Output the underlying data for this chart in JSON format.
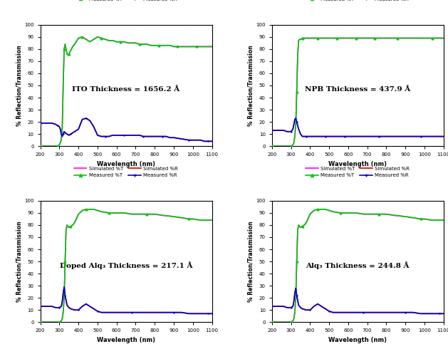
{
  "panels": [
    {
      "title": "ITO Thickness = 1656.2 Å",
      "transmission": {
        "wavelengths": [
          200,
          220,
          240,
          260,
          280,
          290,
          300,
          310,
          315,
          320,
          325,
          330,
          335,
          340,
          345,
          350,
          360,
          370,
          380,
          400,
          420,
          440,
          460,
          480,
          500,
          520,
          540,
          560,
          580,
          600,
          620,
          640,
          660,
          680,
          700,
          720,
          740,
          760,
          780,
          800,
          820,
          840,
          860,
          880,
          900,
          920,
          940,
          960,
          980,
          1000,
          1020,
          1040,
          1060,
          1080,
          1100
        ],
        "sim": [
          0,
          0,
          0,
          0,
          0,
          0,
          1,
          5,
          15,
          50,
          80,
          84,
          80,
          76,
          75,
          76,
          79,
          82,
          84,
          89,
          90,
          88,
          86,
          88,
          90,
          89,
          88,
          87,
          87,
          86,
          86,
          86,
          85,
          85,
          85,
          84,
          84,
          84,
          83,
          83,
          83,
          83,
          83,
          83,
          82,
          82,
          82,
          82,
          82,
          82,
          82,
          82,
          82,
          82,
          82
        ],
        "meas": [
          0,
          0,
          0,
          0,
          0,
          0,
          1,
          5,
          15,
          50,
          80,
          84,
          80,
          76,
          75,
          76,
          79,
          82,
          84,
          89,
          90,
          88,
          86,
          88,
          90,
          89,
          88,
          87,
          87,
          86,
          86,
          86,
          85,
          85,
          85,
          84,
          84,
          84,
          83,
          83,
          83,
          83,
          83,
          83,
          82,
          82,
          82,
          82,
          82,
          82,
          82,
          82,
          82,
          82,
          82
        ]
      },
      "reflection": {
        "wavelengths": [
          200,
          220,
          240,
          260,
          280,
          290,
          300,
          305,
          310,
          315,
          320,
          325,
          330,
          340,
          350,
          360,
          370,
          380,
          400,
          420,
          440,
          460,
          480,
          500,
          520,
          540,
          560,
          580,
          600,
          620,
          640,
          660,
          680,
          700,
          720,
          740,
          760,
          780,
          800,
          820,
          840,
          860,
          880,
          900,
          940,
          980,
          1000,
          1020,
          1040,
          1060,
          1080,
          1100
        ],
        "sim": [
          19,
          19,
          19,
          19,
          18,
          17,
          16,
          14,
          10,
          8,
          10,
          12,
          11,
          10,
          9,
          10,
          11,
          12,
          14,
          22,
          23,
          21,
          16,
          9,
          8,
          8,
          8,
          9,
          9,
          9,
          9,
          9,
          9,
          9,
          9,
          8,
          8,
          8,
          8,
          8,
          8,
          8,
          7,
          7,
          6,
          5,
          5,
          5,
          5,
          4,
          4,
          4
        ],
        "meas": [
          19,
          19,
          19,
          19,
          18,
          17,
          16,
          14,
          10,
          8,
          10,
          12,
          11,
          10,
          9,
          10,
          11,
          12,
          14,
          22,
          23,
          21,
          16,
          9,
          8,
          8,
          8,
          9,
          9,
          9,
          9,
          9,
          9,
          9,
          9,
          8,
          8,
          8,
          8,
          8,
          8,
          8,
          7,
          7,
          6,
          5,
          5,
          5,
          5,
          4,
          4,
          4
        ]
      }
    },
    {
      "title": "NPB Thickness = 437.9 Å",
      "transmission": {
        "wavelengths": [
          200,
          220,
          240,
          260,
          280,
          300,
          310,
          315,
          320,
          325,
          330,
          335,
          340,
          345,
          350,
          360,
          370,
          380,
          400,
          420,
          440,
          460,
          480,
          500,
          520,
          540,
          560,
          580,
          600,
          620,
          640,
          660,
          680,
          700,
          720,
          740,
          760,
          780,
          800,
          820,
          860,
          900,
          940,
          980,
          1000,
          1040,
          1080,
          1100
        ],
        "sim": [
          0,
          0,
          0,
          0,
          0,
          0,
          1,
          3,
          8,
          18,
          45,
          75,
          87,
          88,
          88,
          89,
          89,
          89,
          89,
          89,
          89,
          89,
          89,
          89,
          89,
          89,
          89,
          89,
          89,
          89,
          89,
          89,
          89,
          89,
          89,
          89,
          89,
          89,
          89,
          89,
          89,
          89,
          89,
          89,
          89,
          89,
          89,
          89
        ],
        "meas": [
          0,
          0,
          0,
          0,
          0,
          0,
          1,
          3,
          8,
          18,
          45,
          75,
          87,
          88,
          88,
          89,
          89,
          89,
          89,
          89,
          89,
          89,
          89,
          89,
          89,
          89,
          89,
          89,
          89,
          89,
          89,
          89,
          89,
          89,
          89,
          89,
          89,
          89,
          89,
          89,
          89,
          89,
          89,
          89,
          89,
          89,
          89,
          89
        ]
      },
      "reflection": {
        "wavelengths": [
          200,
          220,
          240,
          260,
          280,
          300,
          310,
          315,
          320,
          325,
          330,
          340,
          350,
          360,
          370,
          380,
          400,
          420,
          440,
          460,
          480,
          500,
          520,
          540,
          560,
          580,
          600,
          640,
          680,
          720,
          760,
          800,
          840,
          900,
          940,
          980,
          1000,
          1040,
          1080,
          1100
        ],
        "sim": [
          13,
          13,
          13,
          13,
          12,
          12,
          14,
          18,
          22,
          23,
          20,
          14,
          10,
          8,
          8,
          8,
          8,
          8,
          8,
          8,
          8,
          8,
          8,
          8,
          8,
          8,
          8,
          8,
          8,
          8,
          8,
          8,
          8,
          8,
          8,
          8,
          8,
          8,
          8,
          8
        ],
        "meas": [
          13,
          13,
          13,
          13,
          12,
          12,
          14,
          18,
          22,
          23,
          20,
          14,
          10,
          8,
          8,
          8,
          8,
          8,
          8,
          8,
          8,
          8,
          8,
          8,
          8,
          8,
          8,
          8,
          8,
          8,
          8,
          8,
          8,
          8,
          8,
          8,
          8,
          8,
          8,
          8
        ]
      }
    },
    {
      "title": "Doped Alq₃ Thickness = 217.1 Å",
      "transmission": {
        "wavelengths": [
          200,
          220,
          240,
          260,
          280,
          300,
          310,
          315,
          320,
          325,
          330,
          335,
          340,
          345,
          350,
          360,
          370,
          380,
          400,
          420,
          440,
          460,
          480,
          500,
          520,
          560,
          600,
          640,
          680,
          720,
          760,
          800,
          840,
          900,
          940,
          980,
          1000,
          1040,
          1080,
          1100
        ],
        "sim": [
          0,
          0,
          0,
          0,
          0,
          0,
          1,
          3,
          8,
          20,
          50,
          76,
          80,
          79,
          78,
          79,
          80,
          82,
          89,
          92,
          93,
          93,
          93,
          92,
          91,
          90,
          90,
          90,
          89,
          89,
          89,
          89,
          88,
          87,
          86,
          85,
          85,
          84,
          84,
          84
        ],
        "meas": [
          0,
          0,
          0,
          0,
          0,
          0,
          1,
          3,
          8,
          20,
          50,
          76,
          80,
          79,
          78,
          79,
          80,
          82,
          89,
          92,
          93,
          93,
          93,
          92,
          91,
          90,
          90,
          90,
          89,
          89,
          89,
          89,
          88,
          87,
          86,
          85,
          85,
          84,
          84,
          84
        ]
      },
      "reflection": {
        "wavelengths": [
          200,
          220,
          240,
          260,
          280,
          300,
          310,
          315,
          320,
          325,
          330,
          340,
          350,
          360,
          380,
          400,
          420,
          440,
          460,
          480,
          500,
          520,
          560,
          600,
          640,
          680,
          720,
          760,
          800,
          840,
          900,
          940,
          980,
          1000,
          1040,
          1080,
          1100
        ],
        "sim": [
          13,
          13,
          13,
          13,
          12,
          12,
          13,
          17,
          24,
          29,
          22,
          14,
          12,
          11,
          10,
          10,
          13,
          15,
          13,
          11,
          9,
          8,
          8,
          8,
          8,
          8,
          8,
          8,
          8,
          8,
          8,
          8,
          7,
          7,
          7,
          7,
          7
        ],
        "meas": [
          13,
          13,
          13,
          13,
          12,
          12,
          13,
          17,
          24,
          29,
          22,
          14,
          12,
          11,
          10,
          10,
          13,
          15,
          13,
          11,
          9,
          8,
          8,
          8,
          8,
          8,
          8,
          8,
          8,
          8,
          8,
          8,
          7,
          7,
          7,
          7,
          7
        ]
      }
    },
    {
      "title": "Alq₃ Thickness = 244.8 Å",
      "transmission": {
        "wavelengths": [
          200,
          220,
          240,
          260,
          280,
          300,
          310,
          315,
          320,
          325,
          330,
          335,
          340,
          345,
          350,
          360,
          370,
          380,
          400,
          420,
          440,
          460,
          480,
          500,
          520,
          560,
          600,
          640,
          680,
          720,
          760,
          800,
          840,
          900,
          940,
          980,
          1000,
          1040,
          1080,
          1100
        ],
        "sim": [
          0,
          0,
          0,
          0,
          0,
          0,
          1,
          3,
          8,
          20,
          50,
          76,
          80,
          79,
          78,
          79,
          80,
          82,
          89,
          92,
          93,
          93,
          93,
          92,
          91,
          90,
          90,
          90,
          89,
          89,
          89,
          89,
          88,
          87,
          86,
          85,
          85,
          84,
          84,
          84
        ],
        "meas": [
          0,
          0,
          0,
          0,
          0,
          0,
          1,
          3,
          8,
          20,
          50,
          76,
          80,
          79,
          78,
          79,
          80,
          82,
          89,
          92,
          93,
          93,
          93,
          92,
          91,
          90,
          90,
          90,
          89,
          89,
          89,
          89,
          88,
          87,
          86,
          85,
          85,
          84,
          84,
          84
        ]
      },
      "reflection": {
        "wavelengths": [
          200,
          220,
          240,
          260,
          280,
          300,
          310,
          315,
          320,
          325,
          330,
          340,
          350,
          360,
          380,
          400,
          420,
          440,
          460,
          480,
          500,
          520,
          560,
          600,
          640,
          680,
          720,
          760,
          800,
          840,
          900,
          940,
          980,
          1000,
          1040,
          1080,
          1100
        ],
        "sim": [
          13,
          13,
          13,
          13,
          12,
          12,
          13,
          17,
          24,
          28,
          22,
          14,
          12,
          11,
          10,
          10,
          13,
          15,
          13,
          11,
          9,
          8,
          8,
          8,
          8,
          8,
          8,
          8,
          8,
          8,
          8,
          8,
          7,
          7,
          7,
          7,
          7
        ],
        "meas": [
          13,
          13,
          13,
          13,
          12,
          12,
          13,
          17,
          24,
          28,
          22,
          14,
          12,
          11,
          10,
          10,
          13,
          15,
          13,
          11,
          9,
          8,
          8,
          8,
          8,
          8,
          8,
          8,
          8,
          8,
          8,
          8,
          7,
          7,
          7,
          7,
          7
        ]
      }
    }
  ],
  "colors": {
    "sim_T": "#ff00ff",
    "meas_T": "#00cc00",
    "sim_R": "#cc0000",
    "meas_R": "#0000cc"
  },
  "legend_entries": [
    {
      "label": "Simulated %T",
      "color": "#ff00ff",
      "marker": null,
      "linestyle": "-"
    },
    {
      "label": "Measured %T",
      "color": "#00cc00",
      "marker": "^",
      "linestyle": "-"
    },
    {
      "label": "Simulated %R",
      "color": "#cc0000",
      "marker": null,
      "linestyle": "-"
    },
    {
      "label": "Measured %R",
      "color": "#0000cc",
      "marker": "+",
      "linestyle": "-"
    }
  ],
  "xlabel": "Wavelength (nm)",
  "ylabel": "% Reflection/Transmission",
  "xlim": [
    200,
    1100
  ],
  "ylim": [
    0,
    100
  ],
  "xticks": [
    200,
    300,
    400,
    500,
    600,
    700,
    800,
    900,
    1000,
    1100
  ],
  "yticks": [
    0,
    10,
    20,
    30,
    40,
    50,
    60,
    70,
    80,
    90,
    100
  ],
  "background": "#ffffff",
  "plot_background": "#ffffff"
}
